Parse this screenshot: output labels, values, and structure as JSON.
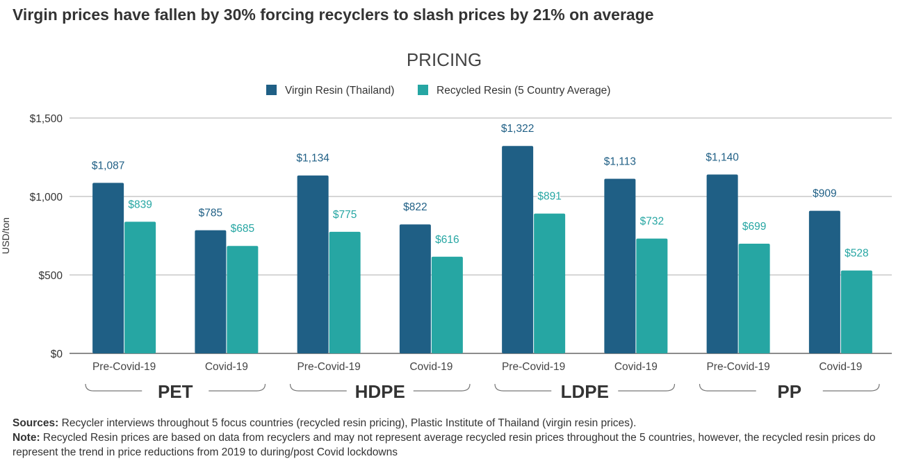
{
  "headline": "Virgin prices have fallen by 30% forcing recyclers to slash prices by 21% on average",
  "footer": {
    "sources_label": "Sources:",
    "sources_text": " Recycler interviews throughout 5 focus countries (recycled resin pricing), Plastic Institute of Thailand (virgin resin prices).",
    "note_label": "Note:",
    "note_text": " Recycled Resin prices are based on data from recyclers and may not represent average recycled resin prices throughout the 5 countries, however, the recycled resin prices do represent the trend in price reductions from 2019 to during/post Covid lockdowns"
  },
  "chart_data": {
    "type": "bar",
    "title": "PRICING",
    "ylabel": "USD/ton",
    "xlabel": "",
    "ylim": [
      0,
      1500
    ],
    "yticks": [
      0,
      500,
      1000,
      1500
    ],
    "ytick_labels": [
      "$0",
      "$500",
      "$1,000",
      "$1,500"
    ],
    "grid": true,
    "legend_position": "top-center",
    "categories": [
      "Pre-Covid-19",
      "Covid-19",
      "Pre-Covid-19",
      "Covid-19",
      "Pre-Covid-19",
      "Covid-19",
      "Pre-Covid-19",
      "Covid-19"
    ],
    "groups": [
      {
        "label": "PET",
        "span": [
          0,
          1
        ]
      },
      {
        "label": "HDPE",
        "span": [
          2,
          3
        ]
      },
      {
        "label": "LDPE",
        "span": [
          4,
          5
        ]
      },
      {
        "label": "PP",
        "span": [
          6,
          7
        ]
      }
    ],
    "series": [
      {
        "name": "Virgin Resin (Thailand)",
        "color": "#1f5f85",
        "values": [
          1087,
          785,
          1134,
          822,
          1322,
          1113,
          1140,
          909
        ],
        "labels": [
          "$1,087",
          "$785",
          "$1,134",
          "$822",
          "$1,322",
          "$1,113",
          "$1,140",
          "$909"
        ],
        "label_color": "#1f5f85"
      },
      {
        "name": "Recycled Resin (5 Country Average)",
        "color": "#26a6a3",
        "values": [
          839,
          685,
          775,
          616,
          891,
          732,
          699,
          528
        ],
        "labels": [
          "$839",
          "$685",
          "$775",
          "$616",
          "$891",
          "$732",
          "$699",
          "$528"
        ],
        "label_color": "#26a6a3"
      }
    ]
  }
}
